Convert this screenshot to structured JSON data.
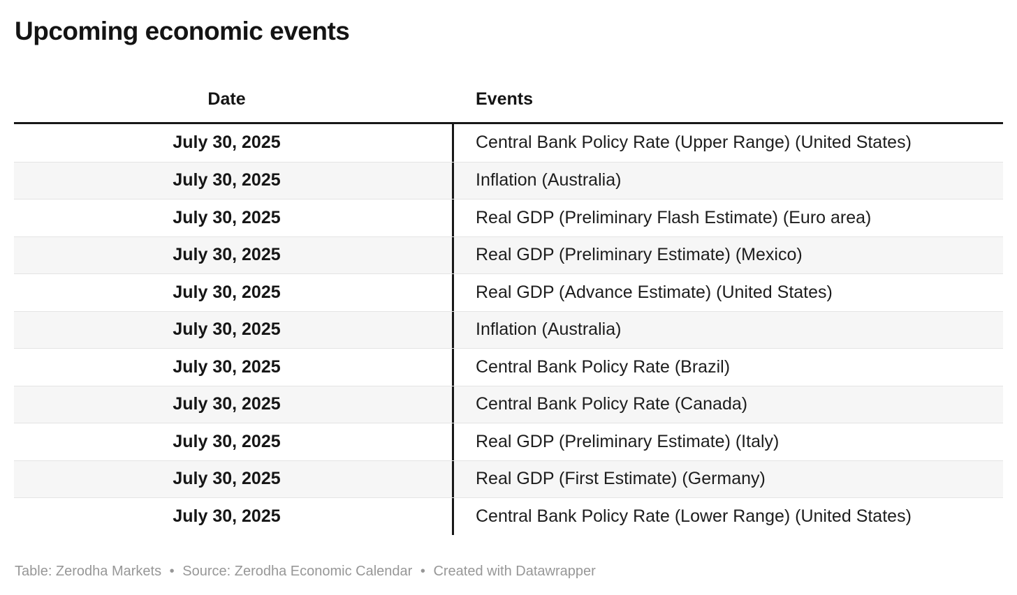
{
  "chart_data": {
    "type": "table",
    "title": "Upcoming economic events",
    "columns": [
      "Date",
      "Events"
    ],
    "rows": [
      [
        "July 30, 2025",
        "Central Bank Policy Rate (Upper Range) (United States)"
      ],
      [
        "July 30, 2025",
        "Inflation (Australia)"
      ],
      [
        "July 30, 2025",
        "Real GDP (Preliminary Flash Estimate) (Euro area)"
      ],
      [
        "July 30, 2025",
        "Real GDP (Preliminary Estimate) (Mexico)"
      ],
      [
        "July 30, 2025",
        "Real GDP (Advance Estimate) (United States)"
      ],
      [
        "July 30, 2025",
        "Inflation (Australia)"
      ],
      [
        "July 30, 2025",
        "Central Bank Policy Rate (Brazil)"
      ],
      [
        "July 30, 2025",
        "Central Bank Policy Rate (Canada)"
      ],
      [
        "July 30, 2025",
        "Real GDP (Preliminary Estimate) (Italy)"
      ],
      [
        "July 30, 2025",
        "Real GDP (First Estimate) (Germany)"
      ],
      [
        "July 30, 2025",
        "Central Bank Policy Rate (Lower Range) (United States)"
      ]
    ],
    "layout": {
      "date_column_align": "center",
      "events_column_align": "left",
      "row_striping": "alternating, first row white"
    }
  },
  "footer": {
    "table_credit": "Table: Zerodha Markets",
    "source_credit": "Source: Zerodha Economic Calendar",
    "created_with": "Created with Datawrapper",
    "separator": "•"
  },
  "colors": {
    "background": "#ffffff",
    "title_text": "#141414",
    "cell_text": "#1d1d1d",
    "header_rule": "#181818",
    "column_divider": "#181818",
    "row_stripe": "#f6f6f6",
    "row_border": "#e4e4e4",
    "footer_text": "#979797"
  }
}
